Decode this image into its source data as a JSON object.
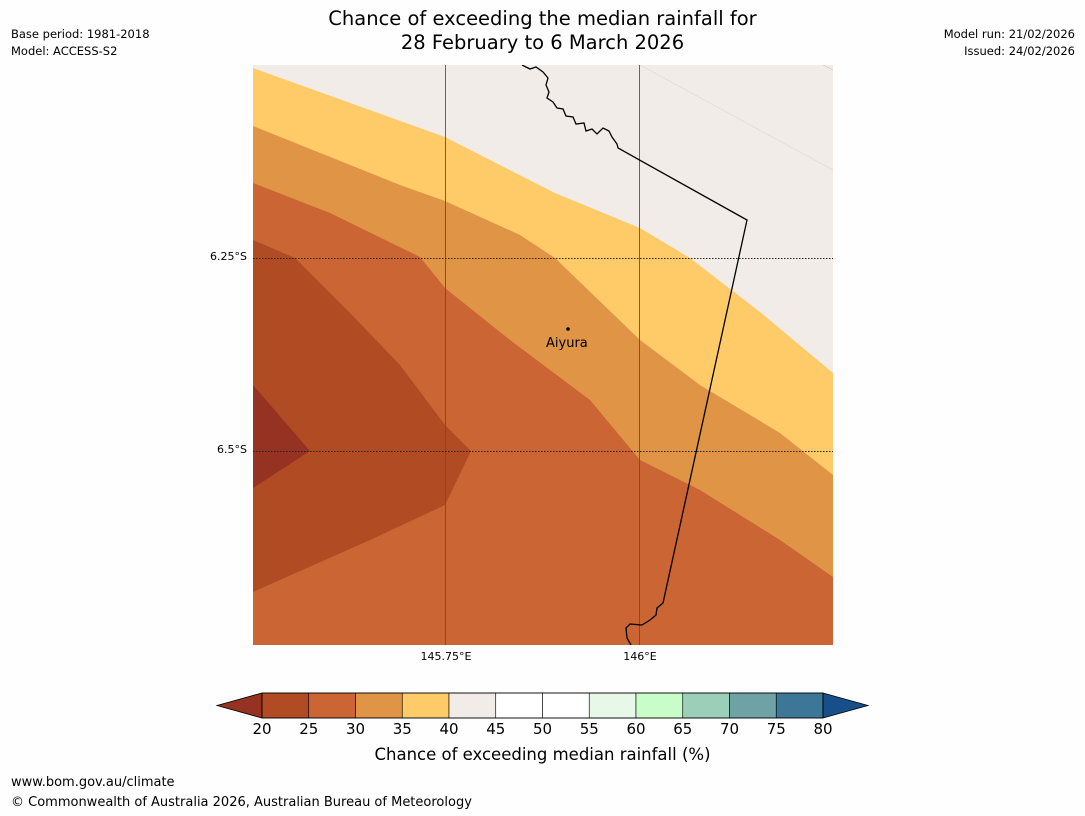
{
  "header": {
    "title_line1": "Chance of exceeding the median rainfall for",
    "title_line2": "28 February to 6 March 2026",
    "base_period": "Base period: 1981-2018",
    "model": "Model: ACCESS-S2",
    "model_run": "Model run: 21/02/2026",
    "issued": "Issued: 24/02/2026"
  },
  "map": {
    "lat_labels": [
      "6.25°S",
      "6.5°S"
    ],
    "lon_labels": [
      "145.75°E",
      "146°E"
    ],
    "place": {
      "name": "Aiyura"
    }
  },
  "colorbar": {
    "title": "Chance of exceeding median rainfall (%)",
    "ticks": [
      "20",
      "25",
      "30",
      "35",
      "40",
      "45",
      "50",
      "55",
      "60",
      "65",
      "70",
      "75",
      "80"
    ],
    "colors": [
      "#b04b24",
      "#cb6533",
      "#e09546",
      "#fecb68",
      "#f1ece7",
      "#ffffff",
      "#ffffff",
      "#e8f8e8",
      "#c8fcc8",
      "#9bcfb9",
      "#6ea2a4",
      "#3d7798"
    ],
    "under_color": "#963221",
    "over_color": "#174f8a"
  },
  "footer": {
    "url": "www.bom.gov.au/climate",
    "copyright": "© Commonwealth of Australia 2026, Australian Bureau of Meteorology"
  }
}
